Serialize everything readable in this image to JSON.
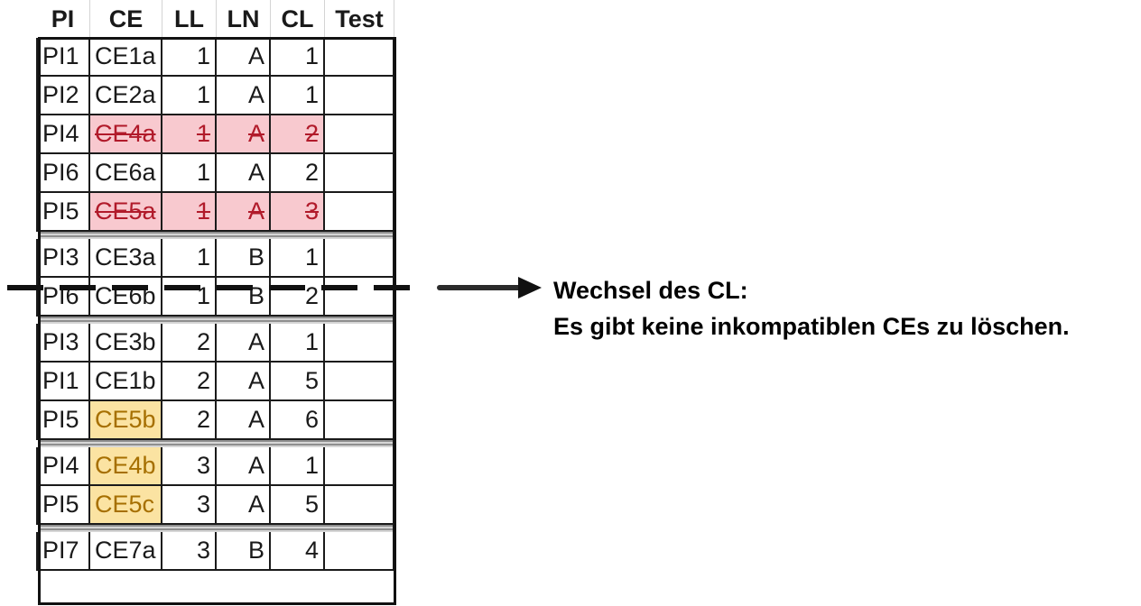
{
  "table": {
    "columns": [
      "PI",
      "CE",
      "LL",
      "LN",
      "CL",
      "Test"
    ],
    "groups": [
      {
        "rows": [
          {
            "PI": "PI1",
            "CE": "CE1a",
            "LL": "1",
            "LN": "A",
            "CL": "1",
            "Test": "",
            "state": "normal"
          },
          {
            "PI": "PI2",
            "CE": "CE2a",
            "LL": "1",
            "LN": "A",
            "CL": "1",
            "Test": "",
            "state": "normal"
          },
          {
            "PI": "PI4",
            "CE": "CE4a",
            "LL": "1",
            "LN": "A",
            "CL": "2",
            "Test": "",
            "state": "deleted"
          },
          {
            "PI": "PI6",
            "CE": "CE6a",
            "LL": "1",
            "LN": "A",
            "CL": "2",
            "Test": "",
            "state": "normal"
          },
          {
            "PI": "PI5",
            "CE": "CE5a",
            "LL": "1",
            "LN": "A",
            "CL": "3",
            "Test": "",
            "state": "deleted"
          }
        ]
      },
      {
        "rows": [
          {
            "PI": "PI3",
            "CE": "CE3a",
            "LL": "1",
            "LN": "B",
            "CL": "1",
            "Test": "",
            "state": "normal"
          },
          {
            "PI": "PI6",
            "CE": "CE6b",
            "LL": "1",
            "LN": "B",
            "CL": "2",
            "Test": "",
            "state": "normal"
          }
        ]
      },
      {
        "rows": [
          {
            "PI": "PI3",
            "CE": "CE3b",
            "LL": "2",
            "LN": "A",
            "CL": "1",
            "Test": "",
            "state": "normal"
          },
          {
            "PI": "PI1",
            "CE": "CE1b",
            "LL": "2",
            "LN": "A",
            "CL": "5",
            "Test": "",
            "state": "normal"
          },
          {
            "PI": "PI5",
            "CE": "CE5b",
            "LL": "2",
            "LN": "A",
            "CL": "6",
            "Test": "",
            "state": "highlight"
          }
        ]
      },
      {
        "rows": [
          {
            "PI": "PI4",
            "CE": "CE4b",
            "LL": "3",
            "LN": "A",
            "CL": "1",
            "Test": "",
            "state": "highlight"
          },
          {
            "PI": "PI5",
            "CE": "CE5c",
            "LL": "3",
            "LN": "A",
            "CL": "5",
            "Test": "",
            "state": "highlight"
          }
        ]
      },
      {
        "rows": [
          {
            "PI": "PI7",
            "CE": "CE7a",
            "LL": "3",
            "LN": "B",
            "CL": "4",
            "Test": "",
            "state": "normal"
          }
        ]
      }
    ]
  },
  "annotation": {
    "line1": "Wechsel des CL:",
    "line2": "Es gibt keine inkompatiblen CEs zu löschen."
  },
  "colors": {
    "deleted_fill": "#f8c9cf",
    "deleted_text": "#b11a2a",
    "highlight_fill": "#fbe3a2",
    "highlight_text": "#a66f00"
  }
}
